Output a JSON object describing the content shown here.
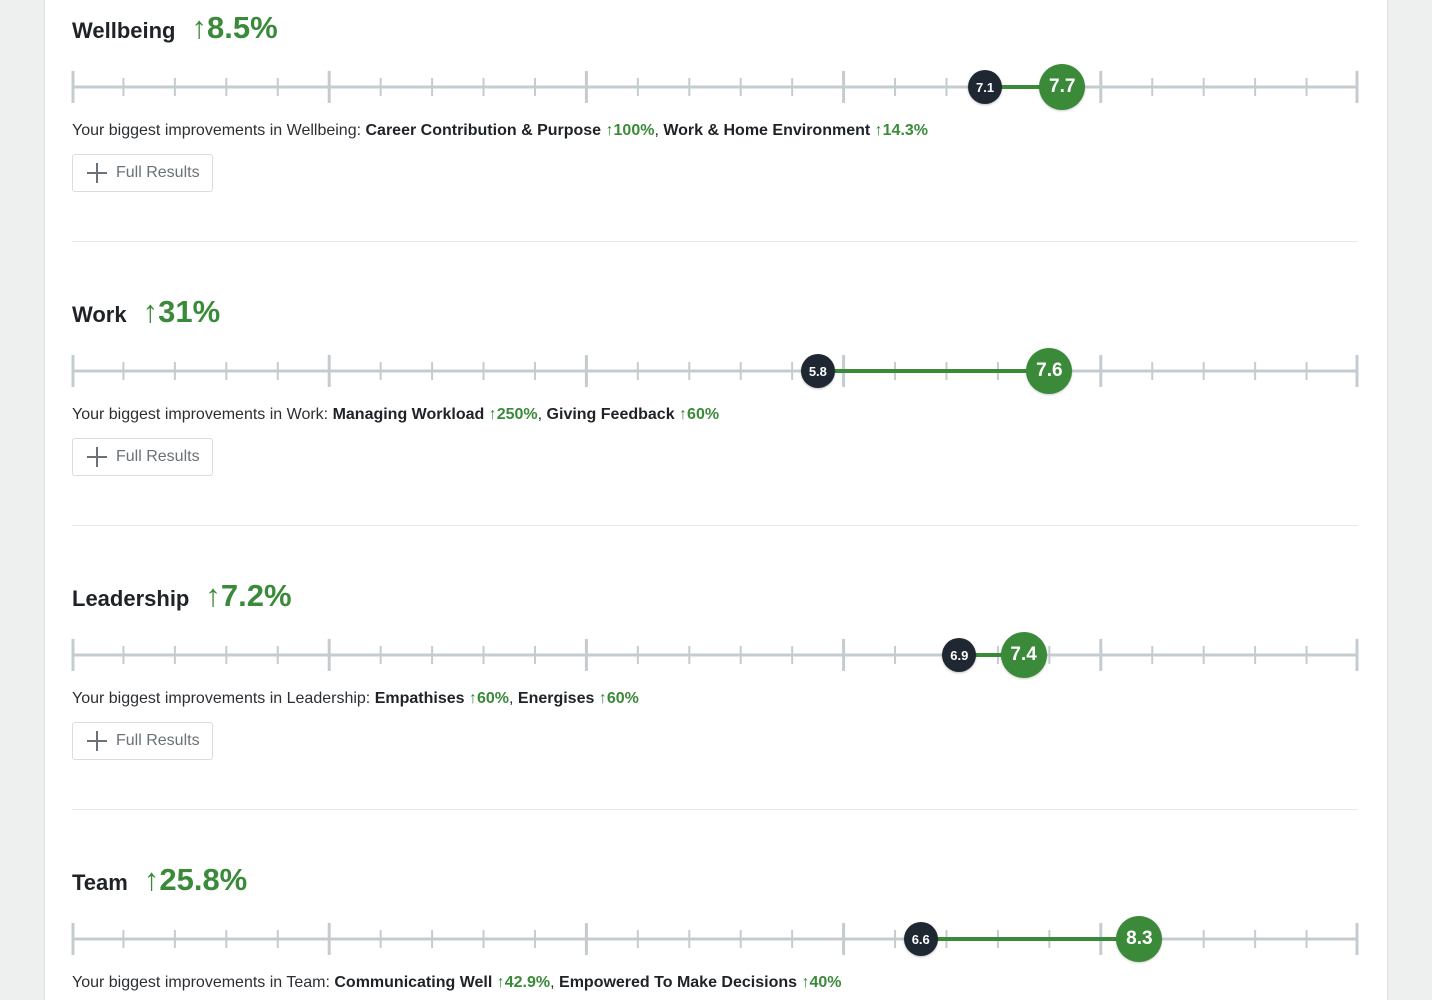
{
  "scale": {
    "min": 0,
    "max": 10
  },
  "colors": {
    "accent": "#3b8a3a",
    "previous": "#1f2733",
    "track": "#c5ccd0"
  },
  "arrow": "↑",
  "button_label": "Full Results",
  "sections": [
    {
      "title": "Wellbeing",
      "change": "8.5%",
      "previous": 7.1,
      "current": 7.7,
      "previous_label": "7.1",
      "current_label": "7.7",
      "improve_prefix": "Your biggest improvements in Wellbeing: ",
      "items": [
        {
          "name": "Career Contribution & Purpose",
          "pct": "100%"
        },
        {
          "name": "Work & Home Environment",
          "pct": "14.3%"
        }
      ]
    },
    {
      "title": "Work",
      "change": "31%",
      "previous": 5.8,
      "current": 7.6,
      "previous_label": "5.8",
      "current_label": "7.6",
      "improve_prefix": "Your biggest improvements in Work: ",
      "items": [
        {
          "name": "Managing Workload",
          "pct": "250%"
        },
        {
          "name": "Giving Feedback",
          "pct": "60%"
        }
      ]
    },
    {
      "title": "Leadership",
      "change": "7.2%",
      "previous": 6.9,
      "current": 7.4,
      "previous_label": "6.9",
      "current_label": "7.4",
      "improve_prefix": "Your biggest improvements in Leadership: ",
      "items": [
        {
          "name": "Empathises",
          "pct": "60%"
        },
        {
          "name": "Energises",
          "pct": "60%"
        }
      ]
    },
    {
      "title": "Team",
      "change": "25.8%",
      "previous": 6.6,
      "current": 8.3,
      "previous_label": "6.6",
      "current_label": "8.3",
      "improve_prefix": "Your biggest improvements in Team: ",
      "items": [
        {
          "name": "Communicating Well",
          "pct": "42.9%"
        },
        {
          "name": "Empowered To Make Decisions",
          "pct": "40%"
        }
      ]
    }
  ]
}
